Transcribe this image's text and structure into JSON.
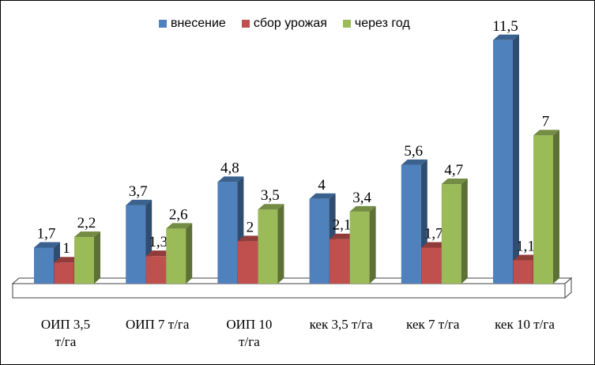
{
  "chart_data": {
    "type": "bar",
    "categories": [
      "ОИП 3,5 т/га",
      "ОИП 7 т/га",
      "ОИП 10 т/га",
      "кек 3,5 т/га",
      "кек 7 т/га",
      "кек 10 т/га"
    ],
    "category_lines": [
      [
        "ОИП 3,5",
        "т/га"
      ],
      [
        "ОИП 7 т/га"
      ],
      [
        "ОИП 10",
        "т/га"
      ],
      [
        "кек 3,5 т/га"
      ],
      [
        "кек 7 т/га"
      ],
      [
        "кек 10 т/га"
      ]
    ],
    "series": [
      {
        "name": "внесение",
        "color": "#4F81BD",
        "values": [
          1.7,
          3.7,
          4.8,
          4,
          5.6,
          11.5
        ],
        "labels": [
          "1,7",
          "3,7",
          "4,8",
          "4",
          "5,6",
          "11,5"
        ]
      },
      {
        "name": "сбор урожая",
        "color": "#C0504D",
        "values": [
          1,
          1.3,
          2,
          2.1,
          1.7,
          1.1
        ],
        "labels": [
          "1",
          "1,3",
          "2",
          "2,1",
          "1,7",
          "1,1"
        ]
      },
      {
        "name": "через год",
        "color": "#9BBB59",
        "values": [
          2.2,
          2.6,
          3.5,
          3.4,
          4.7,
          7
        ],
        "labels": [
          "2,2",
          "2,6",
          "3,5",
          "3,4",
          "4,7",
          "7"
        ]
      }
    ],
    "ylim": [
      0,
      12
    ],
    "grid": false,
    "legend": "top",
    "chart_style": "3d-bar"
  }
}
